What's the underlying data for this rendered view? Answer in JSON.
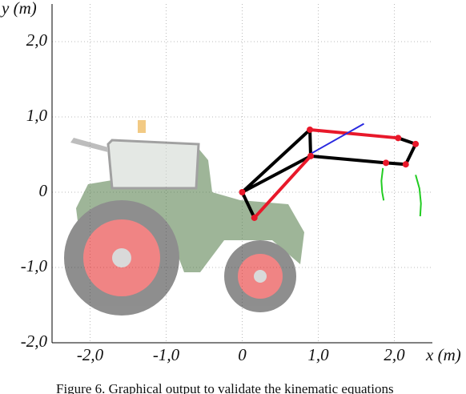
{
  "chart_data": {
    "type": "line",
    "xlabel": "x (m)",
    "ylabel": "y (m)",
    "caption": "Figure 6.    Graphical output to validate the kinematic equations",
    "xlim": [
      -2.5,
      2.5
    ],
    "ylim": [
      -2,
      2.5
    ],
    "xticks": [
      {
        "value": -2,
        "label": "-2,0"
      },
      {
        "value": -1,
        "label": "-1,0"
      },
      0,
      {
        "value": 1,
        "label": "1,0"
      },
      {
        "value": 2,
        "label": "2,0"
      }
    ],
    "yticks": [
      {
        "value": -2,
        "label": "-2,0"
      },
      {
        "value": -1,
        "label": "-1,0"
      },
      0,
      {
        "value": 1,
        "label": "1,0"
      },
      {
        "value": 2,
        "label": "2,0"
      }
    ],
    "grid": true,
    "series": [
      {
        "color": "#000000",
        "x": [
          0.16,
          0,
          0.89,
          null,
          0,
          0.9,
          0.89,
          null,
          0.9,
          1.89,
          2.15,
          2.28,
          2.05
        ],
        "y": [
          -0.34,
          0,
          0.83,
          null,
          0,
          0.48,
          0.83,
          null,
          0.48,
          0.39,
          0.37,
          0.64,
          0.72
        ]
      },
      {
        "color": "#e8182a",
        "x": [
          0.16,
          0.9,
          null,
          0.89,
          2.05
        ],
        "y": [
          -0.34,
          0.48,
          null,
          0.83,
          0.72
        ]
      },
      {
        "color": "#2a2ae0",
        "x": [
          0.9,
          1.6
        ],
        "y": [
          0.51,
          0.91
        ]
      },
      {
        "color": "#22cc22",
        "x": [
          1.85,
          1.83,
          1.84,
          1.86
        ],
        "y": [
          0.32,
          0.15,
          0.0,
          -0.11
        ]
      },
      {
        "color": "#22cc22",
        "x": [
          2.28,
          2.33,
          2.35,
          2.34
        ],
        "y": [
          0.23,
          0.05,
          -0.15,
          -0.32
        ]
      }
    ],
    "points": {
      "color": "#e8182a",
      "x": [
        0,
        0.16,
        0.89,
        0.9,
        2.05,
        2.28,
        1.89,
        2.15
      ],
      "y": [
        0,
        -0.34,
        0.83,
        0.48,
        0.72,
        0.64,
        0.39,
        0.37
      ]
    }
  }
}
